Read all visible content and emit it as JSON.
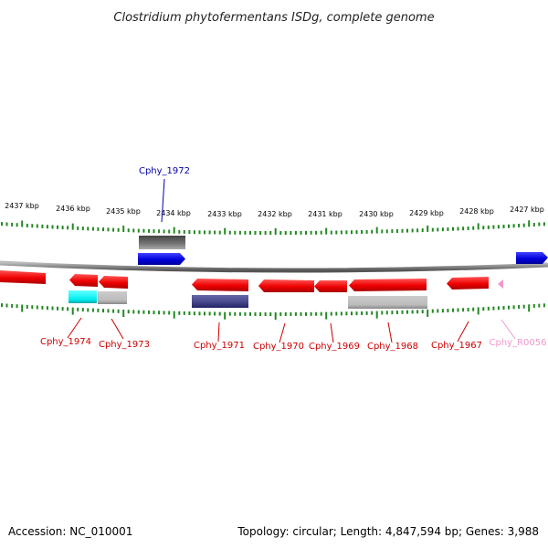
{
  "title": "Clostridium phytofermentans ISDg, complete genome",
  "footer": {
    "accession": "Accession: NC_010001",
    "summary": "Topology: circular; Length: 4,847,594 bp; Genes: 3,988"
  },
  "colors": {
    "forward_cds": "#0000dd",
    "reverse_cds": "#ee0000",
    "rrna_trna": "#ee99cc",
    "tick": "#228822",
    "backbone": "#888888",
    "cog_dark_gray": "#666666",
    "cog_light_gray": "#bbbbbb",
    "cog_navy": "#444488",
    "cog_cyan": "#00eeee"
  },
  "scale_labels": [
    "2437 kbp",
    "2436 kbp",
    "2435 kbp",
    "2434 kbp",
    "2433 kbp",
    "2432 kbp",
    "2431 kbp",
    "2430 kbp",
    "2429 kbp",
    "2428 kbp",
    "2427 kbp"
  ],
  "gene_labels": [
    {
      "text": "Cphy_1972",
      "color": "#0000aa"
    },
    {
      "text": "Cphy_1974",
      "color": "#cc0000"
    },
    {
      "text": "Cphy_1973",
      "color": "#cc0000"
    },
    {
      "text": "Cphy_1971",
      "color": "#cc0000"
    },
    {
      "text": "Cphy_1970",
      "color": "#cc0000"
    },
    {
      "text": "Cphy_1969",
      "color": "#cc0000"
    },
    {
      "text": "Cphy_1968",
      "color": "#cc0000"
    },
    {
      "text": "Cphy_1967",
      "color": "#cc0000"
    },
    {
      "text": "Cphy_R0056",
      "color": "#ee99cc"
    }
  ]
}
